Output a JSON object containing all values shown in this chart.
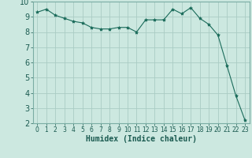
{
  "x": [
    0,
    1,
    2,
    3,
    4,
    5,
    6,
    7,
    8,
    9,
    10,
    11,
    12,
    13,
    14,
    15,
    16,
    17,
    18,
    19,
    20,
    21,
    22,
    23
  ],
  "y": [
    9.3,
    9.5,
    9.1,
    8.9,
    8.7,
    8.6,
    8.3,
    8.2,
    8.2,
    8.3,
    8.3,
    8.0,
    8.8,
    8.8,
    8.8,
    9.5,
    9.2,
    9.6,
    8.9,
    8.5,
    7.8,
    5.8,
    3.8,
    2.2
  ],
  "line_color": "#1a6b5a",
  "marker": "*",
  "marker_size": 3,
  "bg_color": "#cce8e0",
  "grid_color": "#aaccc4",
  "xlabel": "Humidex (Indice chaleur)",
  "xlabel_fontsize": 7,
  "tick_fontsize": 7,
  "ylim": [
    2,
    10
  ],
  "xlim": [
    -0.5,
    23.5
  ],
  "yticks": [
    2,
    3,
    4,
    5,
    6,
    7,
    8,
    9,
    10
  ],
  "xticks": [
    0,
    1,
    2,
    3,
    4,
    5,
    6,
    7,
    8,
    9,
    10,
    11,
    12,
    13,
    14,
    15,
    16,
    17,
    18,
    19,
    20,
    21,
    22,
    23
  ]
}
